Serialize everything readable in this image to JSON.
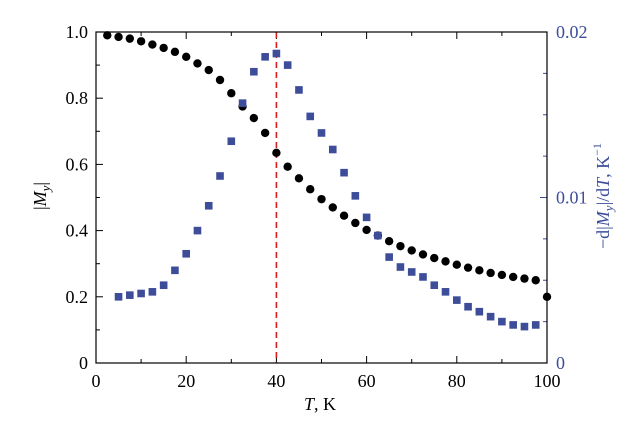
{
  "chart_data": {
    "type": "scatter",
    "x_axis": {
      "label_main": "T",
      "label_rest": ", K",
      "range": [
        0,
        100
      ],
      "ticks": [
        0,
        20,
        40,
        60,
        80,
        100
      ],
      "tick_labels": [
        "0",
        "20",
        "40",
        "60",
        "80",
        "100"
      ]
    },
    "y_axis_left": {
      "label": "|M",
      "label_sub": "y",
      "label_end": "|",
      "range": [
        0,
        1.0
      ],
      "ticks": [
        0,
        0.2,
        0.4,
        0.6,
        0.8,
        1.0
      ],
      "tick_labels": [
        "0",
        "0.2",
        "0.4",
        "0.6",
        "0.8",
        "1.0"
      ],
      "color": "#000000"
    },
    "y_axis_right": {
      "label_prefix": "−d|",
      "label_m": "M",
      "label_sub": "y",
      "label_mid": "|/d",
      "label_t": "T",
      "label_unit": ", K",
      "label_sup": "−1",
      "range": [
        0,
        0.02
      ],
      "ticks": [
        0,
        0.01,
        0.02
      ],
      "tick_labels": [
        "0",
        "0.01",
        "0.02"
      ],
      "color": "#3d4d9a"
    },
    "reference_line": {
      "x": 40,
      "color": "#d62020",
      "style": "dashed"
    },
    "series": [
      {
        "axis": "left",
        "marker": "circle",
        "color": "#000000",
        "points": [
          [
            2.5,
            0.99
          ],
          [
            5,
            0.985
          ],
          [
            7.5,
            0.98
          ],
          [
            10,
            0.972
          ],
          [
            12.5,
            0.962
          ],
          [
            15,
            0.952
          ],
          [
            17.5,
            0.94
          ],
          [
            20,
            0.925
          ],
          [
            22.5,
            0.905
          ],
          [
            25,
            0.885
          ],
          [
            27.5,
            0.855
          ],
          [
            30,
            0.815
          ],
          [
            32.5,
            0.775
          ],
          [
            35,
            0.74
          ],
          [
            37.5,
            0.695
          ],
          [
            40,
            0.635
          ],
          [
            42.5,
            0.593
          ],
          [
            45,
            0.558
          ],
          [
            47.5,
            0.525
          ],
          [
            50,
            0.495
          ],
          [
            52.5,
            0.47
          ],
          [
            55,
            0.445
          ],
          [
            57.5,
            0.423
          ],
          [
            60,
            0.402
          ],
          [
            62.5,
            0.385
          ],
          [
            65,
            0.368
          ],
          [
            67.5,
            0.353
          ],
          [
            70,
            0.34
          ],
          [
            72.5,
            0.328
          ],
          [
            75,
            0.317
          ],
          [
            77.5,
            0.307
          ],
          [
            80,
            0.297
          ],
          [
            82.5,
            0.288
          ],
          [
            85,
            0.28
          ],
          [
            87.5,
            0.272
          ],
          [
            90,
            0.266
          ],
          [
            92.5,
            0.26
          ],
          [
            95,
            0.255
          ],
          [
            97.5,
            0.25
          ],
          [
            100,
            0.2
          ]
        ]
      },
      {
        "axis": "right",
        "marker": "square",
        "color": "#3d4d9a",
        "points": [
          [
            5,
            0.004
          ],
          [
            7.5,
            0.0041
          ],
          [
            10,
            0.0042
          ],
          [
            12.5,
            0.0043
          ],
          [
            15,
            0.0047
          ],
          [
            17.5,
            0.0056
          ],
          [
            20,
            0.0066
          ],
          [
            22.5,
            0.008
          ],
          [
            25,
            0.0095
          ],
          [
            27.5,
            0.0113
          ],
          [
            30,
            0.0134
          ],
          [
            32.5,
            0.0157
          ],
          [
            35,
            0.0176
          ],
          [
            37.5,
            0.0185
          ],
          [
            40,
            0.0187
          ],
          [
            42.5,
            0.018
          ],
          [
            45,
            0.0165
          ],
          [
            47.5,
            0.0149
          ],
          [
            50,
            0.0139
          ],
          [
            52.5,
            0.0129
          ],
          [
            55,
            0.0115
          ],
          [
            57.5,
            0.0101
          ],
          [
            60,
            0.0088
          ],
          [
            62.5,
            0.0077
          ],
          [
            65,
            0.0064
          ],
          [
            67.5,
            0.0058
          ],
          [
            70,
            0.0055
          ],
          [
            72.5,
            0.0052
          ],
          [
            75,
            0.0047
          ],
          [
            77.5,
            0.0043
          ],
          [
            80,
            0.0038
          ],
          [
            82.5,
            0.0034
          ],
          [
            85,
            0.0031
          ],
          [
            87.5,
            0.0028
          ],
          [
            90,
            0.0025
          ],
          [
            92.5,
            0.0023
          ],
          [
            95,
            0.0022
          ],
          [
            97.5,
            0.0023
          ]
        ]
      }
    ]
  }
}
